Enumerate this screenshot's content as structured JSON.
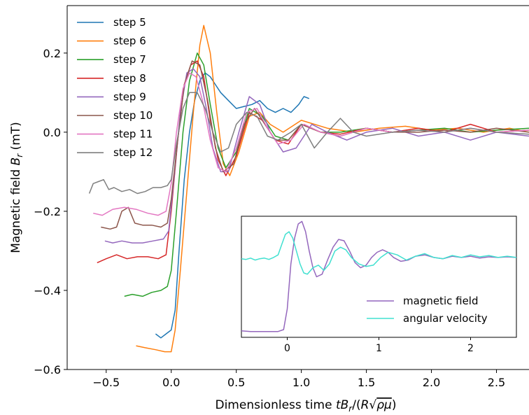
{
  "chart_data": [
    {
      "type": "line",
      "xlabel": "Dimensionless time",
      "ylabel": "Magnetic field",
      "xlim": [
        -0.8,
        2.75
      ],
      "ylim": [
        -0.6,
        0.32
      ],
      "xticks": [
        "−0.5",
        "0.0",
        "0.5",
        "1.0",
        "1.5",
        "2.0",
        "2.5"
      ],
      "xtick_values": [
        -0.5,
        0.0,
        0.5,
        1.0,
        1.5,
        2.0,
        2.5
      ],
      "yticks": [
        "−0.6",
        "−0.4",
        "−0.2",
        "0.0",
        "0.2"
      ],
      "ytick_values": [
        -0.6,
        -0.4,
        -0.2,
        0.0,
        0.2
      ],
      "grid": false,
      "legend_position": "top-left",
      "series": [
        {
          "name": "step 5",
          "color": "#1f77b4",
          "x": [
            -0.12,
            -0.08,
            -0.04,
            0.0,
            0.03,
            0.06,
            0.1,
            0.14,
            0.18,
            0.22,
            0.26,
            0.3,
            0.34,
            0.38,
            0.44,
            0.5,
            0.56,
            0.62,
            0.68,
            0.74,
            0.8,
            0.86,
            0.92,
            0.98,
            1.02,
            1.06
          ],
          "y": [
            -0.51,
            -0.52,
            -0.51,
            -0.5,
            -0.45,
            -0.3,
            -0.12,
            0.0,
            0.08,
            0.13,
            0.15,
            0.14,
            0.12,
            0.1,
            0.08,
            0.06,
            0.065,
            0.07,
            0.08,
            0.06,
            0.05,
            0.06,
            0.05,
            0.07,
            0.09,
            0.085
          ]
        },
        {
          "name": "step 6",
          "color": "#ff7f0e",
          "x": [
            -0.27,
            -0.2,
            -0.12,
            -0.05,
            0.0,
            0.03,
            0.07,
            0.12,
            0.17,
            0.22,
            0.25,
            0.3,
            0.35,
            0.4,
            0.45,
            0.52,
            0.6,
            0.68,
            0.76,
            0.86,
            1.0,
            1.2,
            1.4,
            1.6,
            1.8,
            2.0,
            2.2,
            2.4,
            2.6,
            2.75
          ],
          "y": [
            -0.54,
            -0.545,
            -0.55,
            -0.555,
            -0.555,
            -0.5,
            -0.35,
            -0.15,
            0.05,
            0.22,
            0.27,
            0.2,
            0.05,
            -0.08,
            -0.11,
            -0.05,
            0.04,
            0.05,
            0.02,
            0.0,
            0.03,
            0.01,
            0.0,
            0.01,
            0.015,
            0.005,
            0.01,
            0.0,
            0.01,
            0.0
          ]
        },
        {
          "name": "step 7",
          "color": "#2ca02c",
          "x": [
            -0.36,
            -0.3,
            -0.22,
            -0.15,
            -0.08,
            -0.03,
            0.0,
            0.04,
            0.09,
            0.14,
            0.2,
            0.25,
            0.3,
            0.36,
            0.42,
            0.5,
            0.6,
            0.7,
            0.8,
            0.9,
            1.0,
            1.15,
            1.3,
            1.5,
            1.7,
            1.9,
            2.1,
            2.3,
            2.5,
            2.75
          ],
          "y": [
            -0.415,
            -0.41,
            -0.415,
            -0.405,
            -0.4,
            -0.39,
            -0.35,
            -0.2,
            -0.0,
            0.13,
            0.2,
            0.17,
            0.07,
            -0.04,
            -0.09,
            -0.05,
            0.06,
            0.04,
            -0.01,
            -0.02,
            0.02,
            0.0,
            0.0,
            0.01,
            0.0,
            0.005,
            0.01,
            0.0,
            0.005,
            0.01
          ]
        },
        {
          "name": "step 8",
          "color": "#d62728",
          "x": [
            -0.57,
            -0.5,
            -0.42,
            -0.34,
            -0.26,
            -0.18,
            -0.1,
            -0.04,
            0.0,
            0.05,
            0.1,
            0.15,
            0.2,
            0.25,
            0.3,
            0.36,
            0.42,
            0.5,
            0.6,
            0.7,
            0.8,
            0.9,
            1.0,
            1.15,
            1.3,
            1.5,
            1.7,
            1.9,
            2.1,
            2.3,
            2.5,
            2.75
          ],
          "y": [
            -0.33,
            -0.32,
            -0.31,
            -0.32,
            -0.315,
            -0.315,
            -0.32,
            -0.31,
            -0.2,
            -0.02,
            0.12,
            0.17,
            0.18,
            0.14,
            0.03,
            -0.07,
            -0.11,
            -0.06,
            0.05,
            0.03,
            -0.02,
            -0.03,
            0.02,
            0.0,
            -0.005,
            0.01,
            0.0,
            0.01,
            0.0,
            0.02,
            0.0,
            0.005
          ]
        },
        {
          "name": "step 9",
          "color": "#9467bd",
          "x": [
            -0.51,
            -0.45,
            -0.38,
            -0.3,
            -0.22,
            -0.14,
            -0.06,
            -0.02,
            0.02,
            0.07,
            0.12,
            0.17,
            0.22,
            0.27,
            0.32,
            0.38,
            0.44,
            0.52,
            0.6,
            0.68,
            0.76,
            0.86,
            0.96,
            1.08,
            1.2,
            1.35,
            1.5,
            1.7,
            1.9,
            2.1,
            2.3,
            2.5,
            2.75
          ],
          "y": [
            -0.275,
            -0.28,
            -0.275,
            -0.28,
            -0.28,
            -0.275,
            -0.27,
            -0.25,
            -0.12,
            0.05,
            0.15,
            0.16,
            0.14,
            0.06,
            -0.04,
            -0.1,
            -0.1,
            0.0,
            0.09,
            0.07,
            0.0,
            -0.05,
            -0.04,
            0.02,
            0.0,
            -0.02,
            0.0,
            0.01,
            -0.01,
            0.0,
            -0.02,
            0.0,
            -0.01
          ]
        },
        {
          "name": "step 10",
          "color": "#8c564b",
          "x": [
            -0.54,
            -0.47,
            -0.42,
            -0.38,
            -0.33,
            -0.28,
            -0.22,
            -0.15,
            -0.08,
            -0.03,
            0.0,
            0.05,
            0.1,
            0.16,
            0.22,
            0.28,
            0.34,
            0.4,
            0.48,
            0.56,
            0.64,
            0.72,
            0.8,
            0.9,
            1.0,
            1.15,
            1.3,
            1.5,
            1.7,
            1.9,
            2.1,
            2.3,
            2.5,
            2.75
          ],
          "y": [
            -0.24,
            -0.245,
            -0.24,
            -0.2,
            -0.19,
            -0.23,
            -0.235,
            -0.235,
            -0.24,
            -0.23,
            -0.17,
            -0.02,
            0.12,
            0.18,
            0.17,
            0.08,
            -0.04,
            -0.1,
            -0.08,
            0.02,
            0.06,
            0.02,
            -0.02,
            -0.02,
            0.02,
            0.0,
            -0.01,
            0.01,
            0.0,
            0.0,
            0.005,
            0.0,
            0.01,
            0.0
          ]
        },
        {
          "name": "step 11",
          "color": "#e377c2",
          "x": [
            -0.6,
            -0.53,
            -0.45,
            -0.36,
            -0.27,
            -0.18,
            -0.1,
            -0.04,
            0.0,
            0.04,
            0.09,
            0.14,
            0.19,
            0.24,
            0.3,
            0.36,
            0.42,
            0.5,
            0.58,
            0.66,
            0.74,
            0.82,
            0.92,
            1.02,
            1.15,
            1.3,
            1.5,
            1.7,
            1.9,
            2.1,
            2.3,
            2.5,
            2.75
          ],
          "y": [
            -0.205,
            -0.21,
            -0.195,
            -0.19,
            -0.195,
            -0.205,
            -0.21,
            -0.2,
            -0.13,
            0.0,
            0.11,
            0.15,
            0.14,
            0.08,
            -0.02,
            -0.09,
            -0.1,
            -0.04,
            0.05,
            0.06,
            0.01,
            -0.03,
            -0.02,
            0.02,
            0.0,
            -0.01,
            0.01,
            0.0,
            0.005,
            0.0,
            0.01,
            0.0,
            0.005
          ]
        },
        {
          "name": "step 12",
          "color": "#7f7f7f",
          "x": [
            -0.63,
            -0.6,
            -0.56,
            -0.52,
            -0.48,
            -0.44,
            -0.38,
            -0.32,
            -0.26,
            -0.2,
            -0.14,
            -0.08,
            -0.03,
            0.0,
            0.04,
            0.09,
            0.14,
            0.2,
            0.26,
            0.32,
            0.38,
            0.44,
            0.5,
            0.58,
            0.66,
            0.74,
            0.82,
            0.92,
            1.0,
            1.1,
            1.2,
            1.3,
            1.4,
            1.5,
            1.7,
            1.9,
            2.1,
            2.3,
            2.5,
            2.75
          ],
          "y": [
            -0.155,
            -0.13,
            -0.125,
            -0.12,
            -0.145,
            -0.14,
            -0.15,
            -0.145,
            -0.155,
            -0.15,
            -0.14,
            -0.14,
            -0.135,
            -0.12,
            -0.03,
            0.06,
            0.1,
            0.1,
            0.06,
            0.0,
            -0.05,
            -0.04,
            0.02,
            0.05,
            0.04,
            -0.01,
            -0.02,
            0.0,
            0.02,
            -0.04,
            0.0,
            0.035,
            0.0,
            -0.01,
            0.0,
            0.005,
            0.0,
            0.01,
            0.0,
            -0.005
          ]
        }
      ]
    },
    {
      "type": "line",
      "xticks": [
        "0",
        "1",
        "2"
      ],
      "xtick_values": [
        0,
        1,
        2
      ],
      "xlim": [
        -0.5,
        2.5
      ],
      "ylim": [
        -0.62,
        0.32
      ],
      "legend_position": "bottom-right",
      "series": [
        {
          "name": "magnetic field",
          "color": "#9467bd",
          "x": [
            -0.5,
            -0.4,
            -0.3,
            -0.2,
            -0.1,
            -0.04,
            0.0,
            0.04,
            0.08,
            0.12,
            0.16,
            0.2,
            0.24,
            0.28,
            0.32,
            0.38,
            0.44,
            0.5,
            0.56,
            0.62,
            0.68,
            0.74,
            0.8,
            0.86,
            0.92,
            0.98,
            1.04,
            1.1,
            1.16,
            1.24,
            1.32,
            1.4,
            1.5,
            1.6,
            1.7,
            1.8,
            1.9,
            2.0,
            2.1,
            2.2,
            2.3,
            2.4,
            2.5
          ],
          "y": [
            -0.57,
            -0.575,
            -0.575,
            -0.575,
            -0.575,
            -0.56,
            -0.4,
            -0.05,
            0.15,
            0.26,
            0.28,
            0.2,
            0.05,
            -0.08,
            -0.15,
            -0.13,
            -0.02,
            0.08,
            0.14,
            0.13,
            0.05,
            -0.04,
            -0.08,
            -0.06,
            0.0,
            0.04,
            0.06,
            0.04,
            0.0,
            -0.03,
            -0.02,
            0.01,
            0.02,
            0.0,
            -0.01,
            0.01,
            0.0,
            0.01,
            -0.005,
            0.005,
            0.0,
            0.005,
            0.0
          ]
        },
        {
          "name": "angular velocity",
          "color": "#40e0d0",
          "x": [
            -0.5,
            -0.45,
            -0.4,
            -0.35,
            -0.3,
            -0.25,
            -0.2,
            -0.15,
            -0.1,
            -0.06,
            -0.02,
            0.02,
            0.06,
            0.1,
            0.14,
            0.18,
            0.22,
            0.28,
            0.34,
            0.4,
            0.46,
            0.52,
            0.58,
            0.64,
            0.7,
            0.78,
            0.86,
            0.94,
            1.02,
            1.1,
            1.2,
            1.3,
            1.4,
            1.5,
            1.6,
            1.7,
            1.8,
            1.9,
            2.0,
            2.1,
            2.2,
            2.3,
            2.4,
            2.5
          ],
          "y": [
            -0.01,
            -0.015,
            -0.005,
            -0.02,
            -0.01,
            -0.005,
            -0.015,
            0.0,
            0.02,
            0.1,
            0.18,
            0.2,
            0.15,
            0.05,
            -0.05,
            -0.12,
            -0.13,
            -0.08,
            -0.06,
            -0.1,
            -0.05,
            0.05,
            0.08,
            0.06,
            0.0,
            -0.05,
            -0.07,
            -0.06,
            0.0,
            0.04,
            0.02,
            -0.02,
            0.01,
            0.03,
            0.0,
            -0.01,
            0.015,
            0.0,
            0.02,
            0.005,
            0.015,
            0.0,
            0.01,
            0.0
          ]
        }
      ]
    }
  ]
}
